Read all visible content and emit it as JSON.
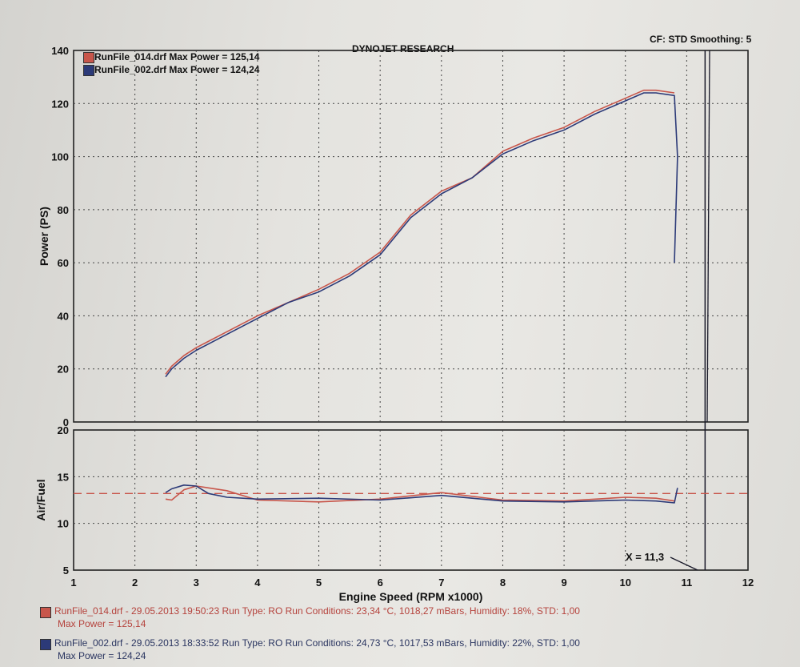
{
  "header": {
    "title": "DYNOJET RESEARCH",
    "settings": "CF: STD  Smoothing: 5"
  },
  "colors": {
    "run_red": "#c8564b",
    "run_blue": "#2c3a78",
    "afr_target": "#c8564b",
    "grid": "#444444"
  },
  "chart_data": [
    {
      "type": "line",
      "ylabel": "Power (PS)",
      "xlim": [
        1,
        12
      ],
      "ylim": [
        0,
        140
      ],
      "yticks": [
        0,
        20,
        40,
        60,
        80,
        100,
        120,
        140
      ],
      "grid": true,
      "legend_position": "top-left",
      "legend": [
        "RunFile_014.drf Max Power = 125,14",
        "RunFile_002.drf Max Power = 124,24"
      ],
      "series": [
        {
          "name": "RunFile_014.drf",
          "color": "#c8564b",
          "x": [
            2.5,
            2.6,
            2.8,
            3.0,
            3.5,
            4.0,
            4.5,
            5.0,
            5.5,
            6.0,
            6.5,
            7.0,
            7.5,
            8.0,
            8.5,
            9.0,
            9.5,
            10.0,
            10.3,
            10.5,
            10.8
          ],
          "y": [
            18,
            21,
            25,
            28,
            34,
            40,
            45,
            50,
            56,
            64,
            78,
            87,
            92,
            102,
            107,
            111,
            117,
            122,
            125,
            125,
            124
          ]
        },
        {
          "name": "RunFile_002.drf",
          "color": "#2c3a78",
          "x": [
            2.5,
            2.6,
            2.8,
            3.0,
            3.5,
            4.0,
            4.5,
            5.0,
            5.5,
            6.0,
            6.5,
            7.0,
            7.5,
            8.0,
            8.5,
            9.0,
            9.5,
            10.0,
            10.3,
            10.5,
            10.8,
            10.85,
            10.8
          ],
          "y": [
            17,
            20,
            24,
            27,
            33,
            39,
            45,
            49,
            55,
            63,
            77,
            86,
            92,
            101,
            106,
            110,
            116,
            121,
            124,
            124,
            123,
            100,
            60
          ]
        }
      ],
      "vertical_markers": [
        11.3
      ]
    },
    {
      "type": "line",
      "ylabel": "Air/Fuel",
      "xlabel": "Engine Speed (RPM x1000)",
      "xlim": [
        1,
        12
      ],
      "ylim": [
        5,
        20
      ],
      "xticks": [
        1,
        2,
        3,
        4,
        5,
        6,
        7,
        8,
        9,
        10,
        11,
        12
      ],
      "yticks": [
        5,
        10,
        15,
        20
      ],
      "grid": true,
      "target_line": 13.2,
      "annotation": "X = 11,3",
      "series": [
        {
          "name": "RunFile_014.drf",
          "color": "#c8564b",
          "x": [
            2.5,
            2.6,
            2.8,
            3.0,
            3.2,
            3.5,
            4.0,
            5.0,
            6.0,
            7.0,
            8.0,
            9.0,
            10.0,
            10.5,
            10.8
          ],
          "y": [
            12.6,
            12.5,
            13.6,
            14.0,
            13.8,
            13.5,
            12.5,
            12.3,
            12.6,
            13.3,
            12.5,
            12.4,
            12.8,
            12.7,
            12.4
          ]
        },
        {
          "name": "RunFile_002.drf",
          "color": "#2c3a78",
          "x": [
            2.5,
            2.6,
            2.8,
            3.0,
            3.2,
            3.5,
            4.0,
            5.0,
            6.0,
            7.0,
            8.0,
            9.0,
            10.0,
            10.5,
            10.8,
            10.85
          ],
          "y": [
            13.3,
            13.7,
            14.1,
            14.0,
            13.2,
            12.8,
            12.6,
            12.7,
            12.5,
            13.0,
            12.4,
            12.3,
            12.5,
            12.4,
            12.2,
            13.8
          ]
        }
      ]
    }
  ],
  "footer": {
    "run1": {
      "line1": "RunFile_014.drf - 29.05.2013 19:50:23  Run Type: RO  Run Conditions: 23,34 °C, 1018,27 mBars,  Humidity:  18%, STD: 1,00",
      "line2": "Max Power = 125,14"
    },
    "run2": {
      "line1": "RunFile_002.drf - 29.05.2013 18:33:52  Run Type: RO  Run Conditions: 24,73 °C, 1017,53 mBars,  Humidity:  22%, STD: 1,00",
      "line2": "Max Power = 124,24"
    }
  }
}
